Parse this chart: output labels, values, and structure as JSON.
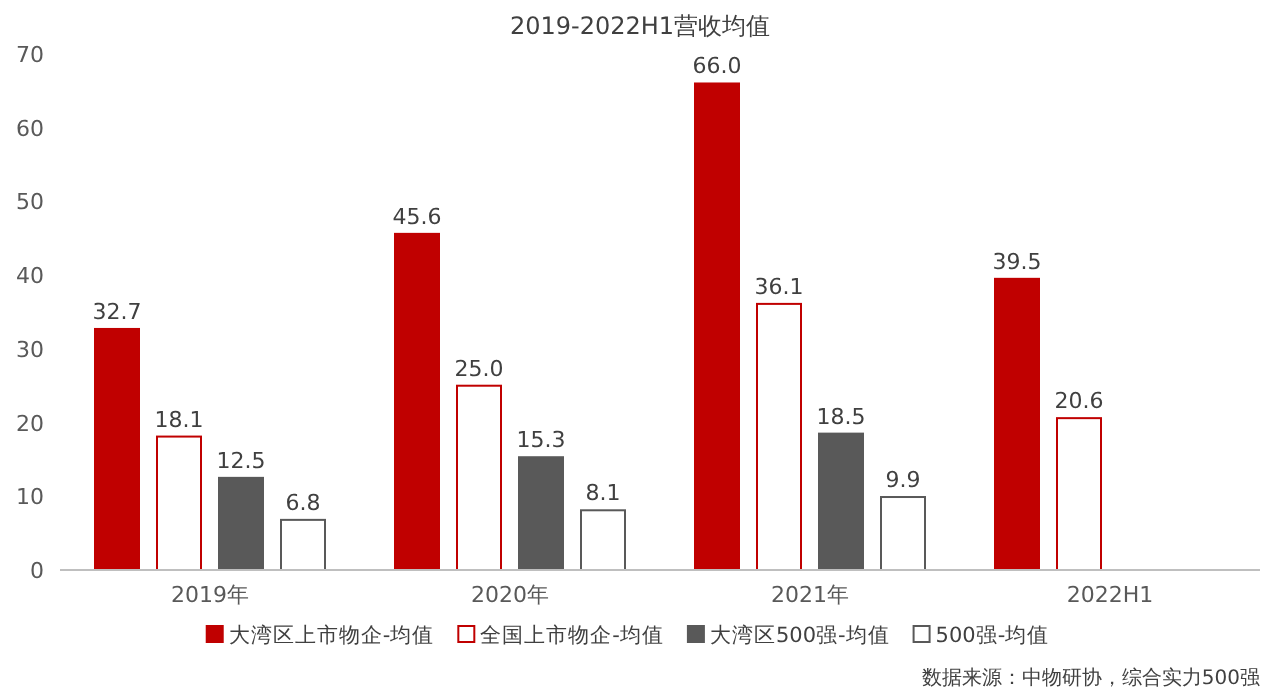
{
  "chart_data": {
    "type": "bar",
    "title": "2019-2022H1营收均值",
    "categories": [
      "2019年",
      "2020年",
      "2021年",
      "2022H1"
    ],
    "series": [
      {
        "name": "大湾区上市物企-均值",
        "color": "#c00000",
        "values": [
          32.7,
          45.6,
          66.0,
          39.5
        ],
        "value_labels": [
          "32.7",
          "45.6",
          "66.0",
          "39.5"
        ]
      },
      {
        "name": "全国上市物企-均值",
        "color": "#ffffff",
        "values": [
          18.1,
          25.0,
          36.1,
          20.6
        ],
        "value_labels": [
          "18.1",
          "25.0",
          "36.1",
          "20.6"
        ]
      },
      {
        "name": "大湾区500强-均值",
        "color": "#595959",
        "values": [
          12.5,
          15.3,
          18.5,
          null
        ],
        "value_labels": [
          "12.5",
          "15.3",
          "18.5",
          null
        ]
      },
      {
        "name": "500强-均值",
        "color": "#ffffff",
        "values": [
          6.8,
          8.1,
          9.9,
          null
        ],
        "value_labels": [
          "6.8",
          "8.1",
          "9.9",
          null
        ]
      }
    ],
    "ylim": [
      0,
      70
    ],
    "yticks": [
      0,
      10,
      20,
      30,
      40,
      50,
      60,
      70
    ],
    "legend": "bottom",
    "grid": false,
    "annotations": [
      "数据来源：中物研协，综合实力500强"
    ]
  }
}
